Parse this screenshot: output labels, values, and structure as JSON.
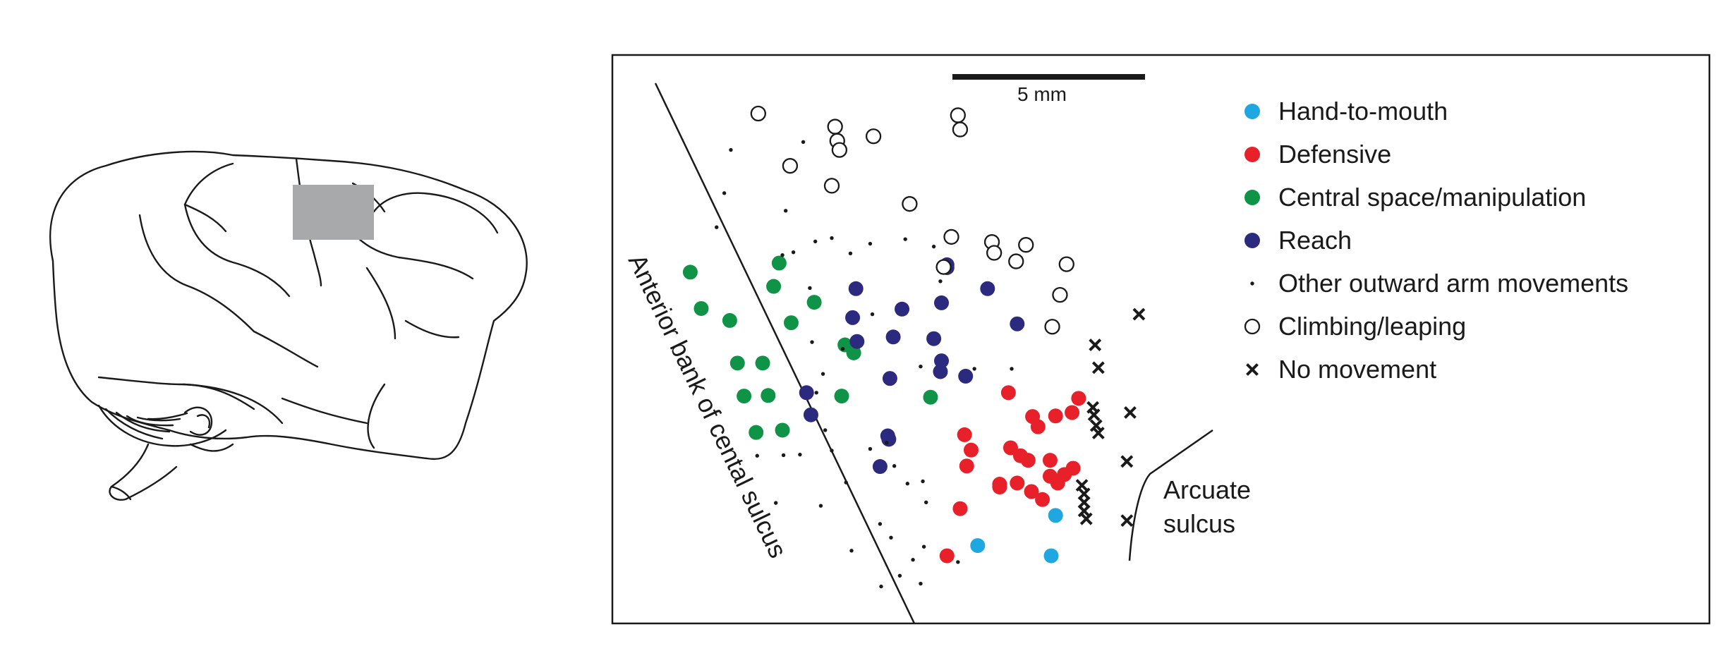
{
  "scale_bar": {
    "label": "5 mm"
  },
  "labels": {
    "central_sulcus": "Anterior bank of cental sulcus",
    "arcuate_line1": "Arcuate",
    "arcuate_line2": "sulcus"
  },
  "legend": [
    {
      "key": "hand_to_mouth",
      "label": "Hand-to-mouth",
      "marker": "dot",
      "color": "#1ea7e1"
    },
    {
      "key": "defensive",
      "label": "Defensive",
      "marker": "dot",
      "color": "#e8202a"
    },
    {
      "key": "central_space",
      "label": "Central space/manipulation",
      "marker": "dot",
      "color": "#0f9447"
    },
    {
      "key": "reach",
      "label": "Reach",
      "marker": "dot",
      "color": "#2b2a7e"
    },
    {
      "key": "other_outward",
      "label": "Other outward arm movements",
      "marker": "small-dot",
      "color": "#1a1a1a"
    },
    {
      "key": "climbing",
      "label": "Climbing/leaping",
      "marker": "open-circle",
      "color": "#1a1a1a"
    },
    {
      "key": "no_movement",
      "label": "No movement",
      "marker": "cross",
      "color": "#1a1a1a"
    }
  ],
  "chart_data": {
    "type": "scatter",
    "x_range": [
      0,
      100
    ],
    "y_range": [
      0,
      100
    ],
    "series": [
      {
        "name": "Hand-to-mouth",
        "points": [
          [
            33.3,
            86.3
          ],
          [
            40.0,
            88.1
          ],
          [
            40.4,
            81.0
          ]
        ]
      },
      {
        "name": "Defensive",
        "points": [
          [
            36.1,
            59.4
          ],
          [
            38.3,
            63.6
          ],
          [
            38.8,
            65.4
          ],
          [
            32.1,
            66.8
          ],
          [
            32.7,
            69.5
          ],
          [
            32.3,
            72.3
          ],
          [
            36.3,
            69.1
          ],
          [
            37.2,
            70.5
          ],
          [
            37.9,
            71.3
          ],
          [
            35.3,
            76.0
          ],
          [
            36.9,
            75.3
          ],
          [
            35.3,
            75.5
          ],
          [
            39.9,
            71.3
          ],
          [
            41.2,
            73.8
          ],
          [
            39.9,
            74.1
          ],
          [
            40.6,
            75.3
          ],
          [
            42.0,
            72.7
          ],
          [
            40.4,
            63.5
          ],
          [
            38.2,
            76.8
          ],
          [
            39.2,
            78.2
          ],
          [
            31.7,
            79.8
          ],
          [
            30.5,
            88.1
          ],
          [
            41.9,
            62.9
          ],
          [
            42.5,
            60.4
          ]
        ]
      },
      {
        "name": "Central space/manipulation",
        "points": [
          [
            7.1,
            38.2
          ],
          [
            8.1,
            44.6
          ],
          [
            10.7,
            46.7
          ],
          [
            15.2,
            36.6
          ],
          [
            14.7,
            40.7
          ],
          [
            18.4,
            43.5
          ],
          [
            16.3,
            47.1
          ],
          [
            21.2,
            51.0
          ],
          [
            22.0,
            52.4
          ],
          [
            11.4,
            54.2
          ],
          [
            13.7,
            54.2
          ],
          [
            12.0,
            60.0
          ],
          [
            14.2,
            59.9
          ],
          [
            20.9,
            60.0
          ],
          [
            13.1,
            66.4
          ],
          [
            15.5,
            66.0
          ],
          [
            29.0,
            60.2
          ]
        ]
      },
      {
        "name": "Reach",
        "points": [
          [
            22.2,
            41.1
          ],
          [
            21.9,
            46.2
          ],
          [
            22.3,
            50.4
          ],
          [
            26.4,
            44.7
          ],
          [
            25.6,
            49.6
          ],
          [
            30.0,
            43.6
          ],
          [
            29.3,
            49.9
          ],
          [
            30.0,
            53.8
          ],
          [
            29.9,
            55.7
          ],
          [
            32.2,
            56.5
          ],
          [
            30.5,
            36.9
          ],
          [
            30.5,
            37.4
          ],
          [
            34.2,
            41.1
          ],
          [
            36.9,
            47.3
          ],
          [
            25.3,
            56.9
          ],
          [
            17.7,
            59.4
          ],
          [
            18.1,
            63.3
          ],
          [
            25.1,
            67.0
          ],
          [
            25.2,
            67.6
          ],
          [
            24.4,
            72.4
          ]
        ]
      },
      {
        "name": "Other outward arm movements",
        "points": [
          [
            10.8,
            16.7
          ],
          [
            17.4,
            15.3
          ],
          [
            10.2,
            24.3
          ],
          [
            15.8,
            27.4
          ],
          [
            9.5,
            30.3
          ],
          [
            18.5,
            32.8
          ],
          [
            20.0,
            32.2
          ],
          [
            23.5,
            33.2
          ],
          [
            26.7,
            32.4
          ],
          [
            15.5,
            35.2
          ],
          [
            16.5,
            34.7
          ],
          [
            21.7,
            34.9
          ],
          [
            18.0,
            41.0
          ],
          [
            23.7,
            45.6
          ],
          [
            18.2,
            50.5
          ],
          [
            21.0,
            51.7
          ],
          [
            19.2,
            56.1
          ],
          [
            18.6,
            59.4
          ],
          [
            19.4,
            66.0
          ],
          [
            20.0,
            69.6
          ],
          [
            23.5,
            69.3
          ],
          [
            25.0,
            68.2
          ],
          [
            13.2,
            70.5
          ],
          [
            15.6,
            70.4
          ],
          [
            17.1,
            70.3
          ],
          [
            25.7,
            72.3
          ],
          [
            26.9,
            75.4
          ],
          [
            28.3,
            75.0
          ],
          [
            21.3,
            75.2
          ],
          [
            28.6,
            78.7
          ],
          [
            14.9,
            78.8
          ],
          [
            19.0,
            79.3
          ],
          [
            24.4,
            82.5
          ],
          [
            21.8,
            87.2
          ],
          [
            25.4,
            84.9
          ],
          [
            28.4,
            86.5
          ],
          [
            27.4,
            88.8
          ],
          [
            31.5,
            89.2
          ],
          [
            26.2,
            91.6
          ],
          [
            24.5,
            93.5
          ],
          [
            28.1,
            93.0
          ],
          [
            33.0,
            55.2
          ],
          [
            36.4,
            55.2
          ],
          [
            28.1,
            54.8
          ],
          [
            29.3,
            33.7
          ],
          [
            29.9,
            39.8
          ]
        ]
      },
      {
        "name": "Climbing/leaping",
        "points": [
          [
            13.3,
            10.3
          ],
          [
            20.3,
            12.6
          ],
          [
            20.5,
            15.1
          ],
          [
            20.7,
            16.7
          ],
          [
            23.8,
            14.3
          ],
          [
            16.2,
            19.5
          ],
          [
            20.0,
            23.0
          ],
          [
            27.1,
            26.2
          ],
          [
            31.5,
            10.6
          ],
          [
            31.7,
            13.1
          ],
          [
            30.9,
            32.0
          ],
          [
            34.6,
            32.9
          ],
          [
            37.7,
            33.4
          ],
          [
            30.2,
            37.3
          ],
          [
            34.8,
            34.8
          ],
          [
            36.8,
            36.3
          ],
          [
            41.4,
            36.8
          ],
          [
            40.8,
            42.2
          ],
          [
            40.1,
            47.8
          ]
        ]
      },
      {
        "name": "No movement",
        "points": [
          [
            44.0,
            51.0
          ],
          [
            44.3,
            55.0
          ],
          [
            48.0,
            45.6
          ],
          [
            43.8,
            62.0
          ],
          [
            43.9,
            63.3
          ],
          [
            44.1,
            65.2
          ],
          [
            44.3,
            66.5
          ],
          [
            47.2,
            62.9
          ],
          [
            46.9,
            71.5
          ],
          [
            42.8,
            75.7
          ],
          [
            43.0,
            77.2
          ],
          [
            43.0,
            78.7
          ],
          [
            43.0,
            80.2
          ],
          [
            43.2,
            81.6
          ],
          [
            46.9,
            81.9
          ]
        ]
      }
    ]
  }
}
